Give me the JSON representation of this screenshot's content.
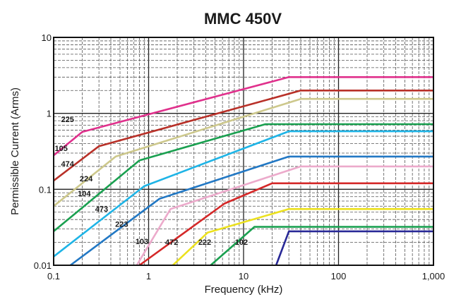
{
  "chart_data": {
    "type": "line",
    "title": "MMC  450V",
    "xlabel": "Frequency (kHz)",
    "ylabel": "Permissible Current (Arms)",
    "x_scale": "log",
    "y_scale": "log",
    "xlim": [
      0.1,
      1000
    ],
    "ylim": [
      0.01,
      10
    ],
    "x_tick_labels": [
      "0.1",
      "1",
      "10",
      "100",
      "1,000"
    ],
    "y_tick_labels": [
      "0.01",
      "0.1",
      "1",
      "10"
    ],
    "grid": true,
    "legend": "none",
    "series": [
      {
        "name": "225",
        "color": "#e0308c",
        "label_at": [
          0.14,
          0.77
        ],
        "points": [
          [
            0.1,
            0.28
          ],
          [
            0.2,
            0.57
          ],
          [
            30,
            3.0
          ],
          [
            1000,
            3.0
          ]
        ]
      },
      {
        "name": "105",
        "color": "#b83028",
        "label_at": [
          0.12,
          0.32
        ],
        "points": [
          [
            0.1,
            0.13
          ],
          [
            0.3,
            0.37
          ],
          [
            40,
            2.0
          ],
          [
            1000,
            2.0
          ]
        ]
      },
      {
        "name": "474",
        "color": "#cdc88c",
        "label_at": [
          0.14,
          0.2
        ],
        "points": [
          [
            0.1,
            0.06
          ],
          [
            0.45,
            0.27
          ],
          [
            40,
            1.55
          ],
          [
            1000,
            1.55
          ]
        ]
      },
      {
        "name": "224",
        "color": "#1aa050",
        "label_at": [
          0.22,
          0.128
        ],
        "points": [
          [
            0.1,
            0.028
          ],
          [
            0.8,
            0.24
          ],
          [
            17,
            0.72
          ],
          [
            1000,
            0.72
          ]
        ]
      },
      {
        "name": "104",
        "color": "#1eb4e6",
        "label_at": [
          0.21,
          0.081
        ],
        "points": [
          [
            0.1,
            0.013
          ],
          [
            0.9,
            0.11
          ],
          [
            30,
            0.58
          ],
          [
            1000,
            0.58
          ]
        ]
      },
      {
        "name": "473",
        "color": "#2278c4",
        "label_at": [
          0.32,
          0.051
        ],
        "points": [
          [
            0.15,
            0.01
          ],
          [
            1.3,
            0.075
          ],
          [
            30,
            0.27
          ],
          [
            1000,
            0.27
          ]
        ]
      },
      {
        "name": "223",
        "color": "#ecaacb",
        "label_at": [
          0.52,
          0.032
        ],
        "points": [
          [
            0.75,
            0.01
          ],
          [
            1.7,
            0.055
          ],
          [
            40,
            0.2
          ],
          [
            1000,
            0.2
          ]
        ]
      },
      {
        "name": "103",
        "color": "#d42828",
        "label_at": [
          0.85,
          0.019
        ],
        "points": [
          [
            0.8,
            0.01
          ],
          [
            6.3,
            0.065
          ],
          [
            20,
            0.12
          ],
          [
            1000,
            0.12
          ]
        ]
      },
      {
        "name": "472",
        "color": "#ece11e",
        "label_at": [
          1.75,
          0.0185
        ],
        "points": [
          [
            1.8,
            0.01
          ],
          [
            4.2,
            0.027
          ],
          [
            30,
            0.055
          ],
          [
            1000,
            0.055
          ]
        ]
      },
      {
        "name": "222",
        "color": "#1aa050",
        "label_at": [
          3.9,
          0.0185
        ],
        "points": [
          [
            4.5,
            0.01
          ],
          [
            10,
            0.024
          ],
          [
            13,
            0.032
          ],
          [
            1000,
            0.032
          ]
        ]
      },
      {
        "name": "102",
        "color": "#282896",
        "label_at": [
          9.5,
          0.0185
        ],
        "points": [
          [
            22,
            0.01
          ],
          [
            30,
            0.028
          ],
          [
            1000,
            0.028
          ]
        ]
      }
    ]
  }
}
